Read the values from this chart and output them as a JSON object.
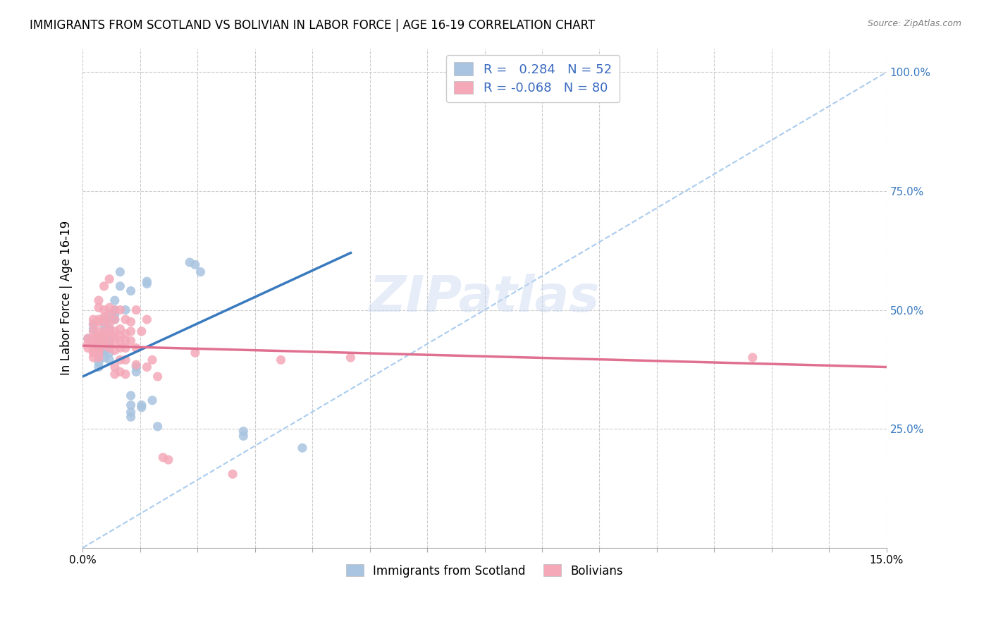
{
  "title": "IMMIGRANTS FROM SCOTLAND VS BOLIVIAN IN LABOR FORCE | AGE 16-19 CORRELATION CHART",
  "source": "Source: ZipAtlas.com",
  "ylabel": "In Labor Force | Age 16-19",
  "xlim": [
    0.0,
    0.15
  ],
  "ylim": [
    0.0,
    1.05
  ],
  "ytick_labels_right": [
    "100.0%",
    "75.0%",
    "50.0%",
    "25.0%"
  ],
  "ytick_positions_right": [
    1.0,
    0.75,
    0.5,
    0.25
  ],
  "scotland_color": "#a8c4e0",
  "bolivian_color": "#f4a8b8",
  "scotland_line_color": "#3a7abf",
  "bolivian_line_color": "#e07090",
  "scotland_R": 0.284,
  "scotland_N": 52,
  "bolivian_R": -0.068,
  "bolivian_N": 80,
  "legend_text_color": "#3a6abf",
  "watermark": "ZIPatlas",
  "scotland_line": [
    [
      0.0,
      0.36
    ],
    [
      0.05,
      0.62
    ]
  ],
  "bolivian_line": [
    [
      0.0,
      0.425
    ],
    [
      0.15,
      0.38
    ]
  ],
  "scotland_points": [
    [
      0.001,
      0.44
    ],
    [
      0.002,
      0.47
    ],
    [
      0.002,
      0.46
    ],
    [
      0.003,
      0.44
    ],
    [
      0.003,
      0.43
    ],
    [
      0.003,
      0.42
    ],
    [
      0.003,
      0.4
    ],
    [
      0.003,
      0.39
    ],
    [
      0.003,
      0.38
    ],
    [
      0.004,
      0.48
    ],
    [
      0.004,
      0.47
    ],
    [
      0.004,
      0.455
    ],
    [
      0.004,
      0.435
    ],
    [
      0.004,
      0.42
    ],
    [
      0.004,
      0.415
    ],
    [
      0.004,
      0.41
    ],
    [
      0.004,
      0.4
    ],
    [
      0.005,
      0.49
    ],
    [
      0.005,
      0.48
    ],
    [
      0.005,
      0.46
    ],
    [
      0.005,
      0.44
    ],
    [
      0.005,
      0.435
    ],
    [
      0.005,
      0.43
    ],
    [
      0.005,
      0.42
    ],
    [
      0.005,
      0.41
    ],
    [
      0.005,
      0.395
    ],
    [
      0.006,
      0.52
    ],
    [
      0.006,
      0.5
    ],
    [
      0.006,
      0.49
    ],
    [
      0.006,
      0.48
    ],
    [
      0.007,
      0.58
    ],
    [
      0.007,
      0.55
    ],
    [
      0.008,
      0.5
    ],
    [
      0.009,
      0.54
    ],
    [
      0.009,
      0.32
    ],
    [
      0.009,
      0.3
    ],
    [
      0.009,
      0.285
    ],
    [
      0.009,
      0.275
    ],
    [
      0.01,
      0.38
    ],
    [
      0.01,
      0.37
    ],
    [
      0.011,
      0.3
    ],
    [
      0.011,
      0.295
    ],
    [
      0.012,
      0.56
    ],
    [
      0.012,
      0.555
    ],
    [
      0.013,
      0.31
    ],
    [
      0.014,
      0.255
    ],
    [
      0.02,
      0.6
    ],
    [
      0.021,
      0.595
    ],
    [
      0.022,
      0.58
    ],
    [
      0.03,
      0.245
    ],
    [
      0.03,
      0.235
    ],
    [
      0.041,
      0.21
    ]
  ],
  "bolivian_points": [
    [
      0.001,
      0.44
    ],
    [
      0.001,
      0.43
    ],
    [
      0.001,
      0.42
    ],
    [
      0.002,
      0.48
    ],
    [
      0.002,
      0.47
    ],
    [
      0.002,
      0.455
    ],
    [
      0.002,
      0.44
    ],
    [
      0.002,
      0.435
    ],
    [
      0.002,
      0.43
    ],
    [
      0.002,
      0.425
    ],
    [
      0.002,
      0.415
    ],
    [
      0.002,
      0.41
    ],
    [
      0.002,
      0.4
    ],
    [
      0.003,
      0.52
    ],
    [
      0.003,
      0.505
    ],
    [
      0.003,
      0.48
    ],
    [
      0.003,
      0.475
    ],
    [
      0.003,
      0.455
    ],
    [
      0.003,
      0.445
    ],
    [
      0.003,
      0.44
    ],
    [
      0.003,
      0.435
    ],
    [
      0.003,
      0.43
    ],
    [
      0.003,
      0.425
    ],
    [
      0.003,
      0.415
    ],
    [
      0.003,
      0.41
    ],
    [
      0.003,
      0.4
    ],
    [
      0.004,
      0.55
    ],
    [
      0.004,
      0.5
    ],
    [
      0.004,
      0.485
    ],
    [
      0.004,
      0.475
    ],
    [
      0.004,
      0.455
    ],
    [
      0.004,
      0.445
    ],
    [
      0.004,
      0.435
    ],
    [
      0.004,
      0.425
    ],
    [
      0.005,
      0.565
    ],
    [
      0.005,
      0.505
    ],
    [
      0.005,
      0.49
    ],
    [
      0.005,
      0.47
    ],
    [
      0.005,
      0.455
    ],
    [
      0.005,
      0.445
    ],
    [
      0.005,
      0.43
    ],
    [
      0.005,
      0.42
    ],
    [
      0.006,
      0.5
    ],
    [
      0.006,
      0.48
    ],
    [
      0.006,
      0.455
    ],
    [
      0.006,
      0.445
    ],
    [
      0.006,
      0.435
    ],
    [
      0.006,
      0.415
    ],
    [
      0.006,
      0.38
    ],
    [
      0.006,
      0.365
    ],
    [
      0.007,
      0.5
    ],
    [
      0.007,
      0.46
    ],
    [
      0.007,
      0.445
    ],
    [
      0.007,
      0.435
    ],
    [
      0.007,
      0.42
    ],
    [
      0.007,
      0.395
    ],
    [
      0.007,
      0.37
    ],
    [
      0.008,
      0.48
    ],
    [
      0.008,
      0.45
    ],
    [
      0.008,
      0.435
    ],
    [
      0.008,
      0.42
    ],
    [
      0.008,
      0.395
    ],
    [
      0.008,
      0.365
    ],
    [
      0.009,
      0.475
    ],
    [
      0.009,
      0.455
    ],
    [
      0.009,
      0.435
    ],
    [
      0.01,
      0.5
    ],
    [
      0.01,
      0.42
    ],
    [
      0.01,
      0.385
    ],
    [
      0.011,
      0.455
    ],
    [
      0.012,
      0.48
    ],
    [
      0.012,
      0.38
    ],
    [
      0.013,
      0.395
    ],
    [
      0.014,
      0.36
    ],
    [
      0.015,
      0.19
    ],
    [
      0.016,
      0.185
    ],
    [
      0.021,
      0.41
    ],
    [
      0.028,
      0.155
    ],
    [
      0.037,
      0.395
    ],
    [
      0.05,
      0.4
    ],
    [
      0.125,
      0.4
    ]
  ]
}
